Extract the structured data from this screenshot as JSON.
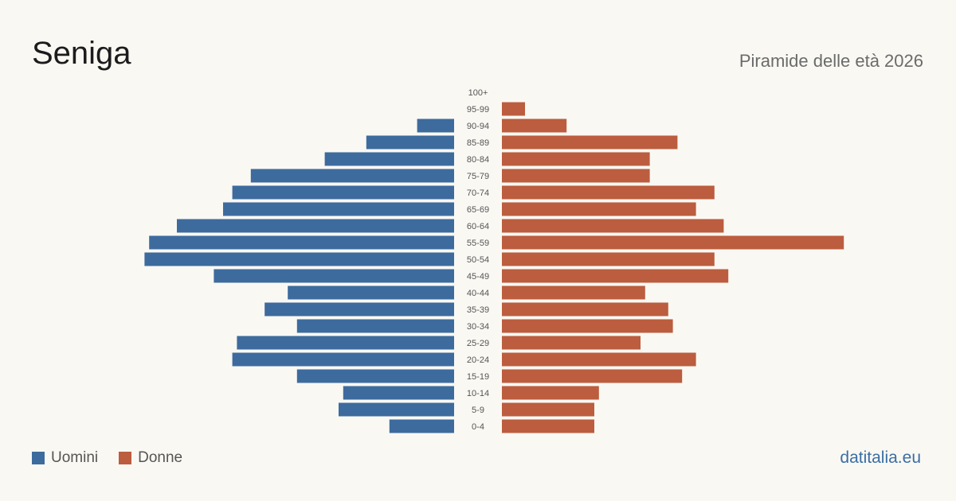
{
  "header": {
    "title": "Seniga",
    "subtitle": "Piramide delle età 2026"
  },
  "legend": {
    "men_label": "Uomini",
    "women_label": "Donne"
  },
  "footer": {
    "brand": "datitalia.eu"
  },
  "colors": {
    "men": "#3d6b9e",
    "women": "#bb5d3e",
    "age_label": "#555555"
  },
  "chart_data": {
    "type": "bar",
    "orientation": "horizontal-population-pyramid",
    "categories": [
      "100+",
      "95-99",
      "90-94",
      "85-89",
      "80-84",
      "75-79",
      "70-74",
      "65-69",
      "60-64",
      "55-59",
      "50-54",
      "45-49",
      "40-44",
      "35-39",
      "30-34",
      "25-29",
      "20-24",
      "15-19",
      "10-14",
      "5-9",
      "0-4"
    ],
    "series": [
      {
        "name": "Uomini",
        "values": [
          0,
          0,
          8,
          19,
          28,
          44,
          48,
          50,
          60,
          66,
          67,
          52,
          36,
          41,
          34,
          47,
          48,
          34,
          24,
          25,
          14
        ]
      },
      {
        "name": "Donne",
        "values": [
          0,
          5,
          14,
          38,
          32,
          32,
          46,
          42,
          48,
          74,
          46,
          49,
          31,
          36,
          37,
          30,
          42,
          39,
          21,
          20,
          20
        ]
      }
    ],
    "xlim": [
      0,
      74
    ],
    "grid": false,
    "legend_position": "bottom-left"
  }
}
